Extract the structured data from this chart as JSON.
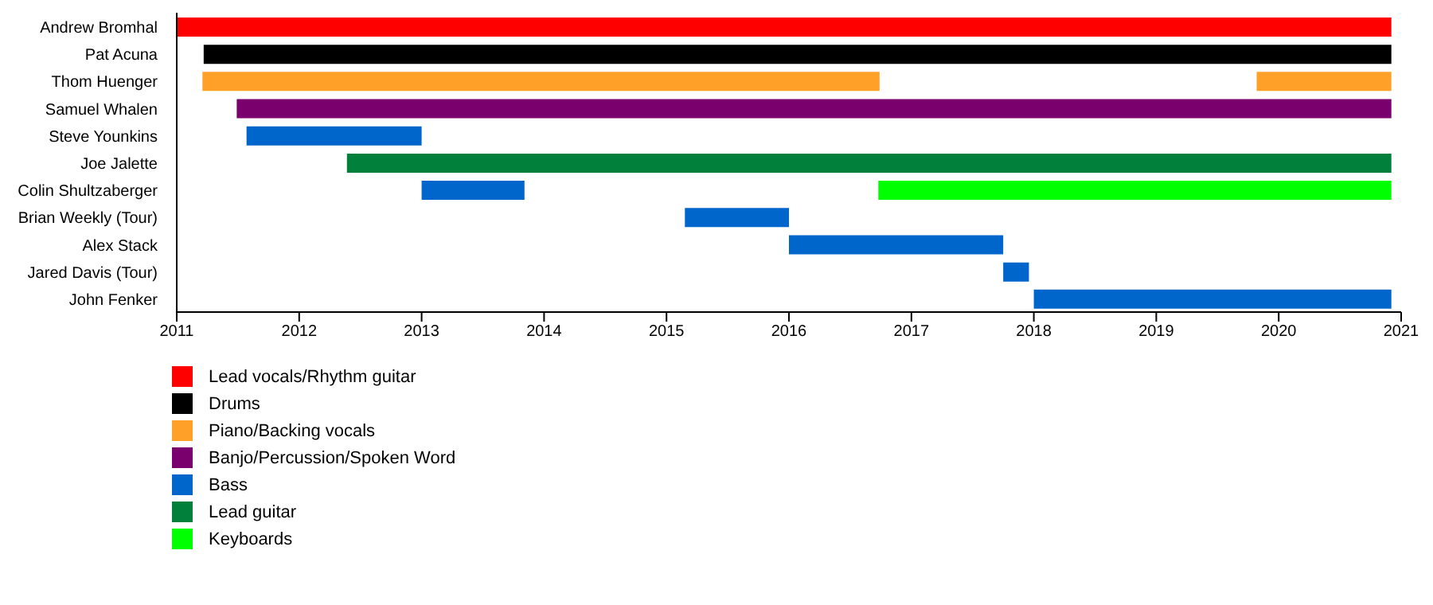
{
  "chart_data": {
    "type": "bar",
    "orientation": "horizontal",
    "categories": [
      "Andrew Bromhal",
      "Pat Acuna",
      "Thom Huenger",
      "Samuel Whalen",
      "Steve Younkins",
      "Joe Jalette",
      "Colin Shultzaberger",
      "Brian Weekly (Tour)",
      "Alex Stack",
      "Jared Davis (Tour)",
      "John Fenker"
    ],
    "series": [
      {
        "name": "Lead vocals/Rhythm guitar",
        "color": "#ff0000",
        "base": [
          2011,
          null,
          null,
          null,
          null,
          null,
          null,
          null,
          null,
          null,
          null
        ],
        "values": [
          9.92,
          null,
          null,
          null,
          null,
          null,
          null,
          null,
          null,
          null,
          null
        ]
      },
      {
        "name": "Drums",
        "color": "#000000",
        "base": [
          null,
          2011.22,
          null,
          null,
          null,
          null,
          null,
          null,
          null,
          null,
          null
        ],
        "values": [
          null,
          9.7,
          null,
          null,
          null,
          null,
          null,
          null,
          null,
          null,
          null
        ]
      },
      {
        "name": "Piano/Backing vocals",
        "color": "#ffa128",
        "base": [
          null,
          null,
          2011.21,
          null,
          null,
          null,
          null,
          null,
          null,
          null,
          null
        ],
        "values": [
          null,
          null,
          5.53,
          null,
          null,
          null,
          null,
          null,
          null,
          null,
          null
        ]
      },
      {
        "color": "#ffa128",
        "base": [
          null,
          null,
          2019.82,
          null,
          null,
          null,
          null,
          null,
          null,
          null,
          null
        ],
        "values": [
          null,
          null,
          1.1,
          null,
          null,
          null,
          null,
          null,
          null,
          null,
          null
        ]
      },
      {
        "name": "Banjo/Percussion/Spoken Word",
        "color": "#7a006e",
        "base": [
          null,
          null,
          null,
          2011.49,
          null,
          null,
          null,
          null,
          null,
          null,
          null
        ],
        "values": [
          null,
          null,
          null,
          9.43,
          null,
          null,
          null,
          null,
          null,
          null,
          null
        ]
      },
      {
        "name": "Bass",
        "color": "#0066cc",
        "base": [
          null,
          null,
          null,
          null,
          2011.57,
          null,
          2013,
          2015.15,
          2016,
          2017.75,
          2018
        ],
        "values": [
          null,
          null,
          null,
          null,
          1.43,
          null,
          0.84,
          0.85,
          1.75,
          0.21,
          2.92
        ]
      },
      {
        "name": "Lead guitar",
        "color": "#00803a",
        "base": [
          null,
          null,
          null,
          null,
          null,
          2012.39,
          null,
          null,
          null,
          null,
          null
        ],
        "values": [
          null,
          null,
          null,
          null,
          null,
          8.53,
          null,
          null,
          null,
          null,
          null
        ]
      },
      {
        "name": "Keyboards",
        "color": "#00ff00",
        "base": [
          null,
          null,
          null,
          null,
          null,
          null,
          2016.73,
          null,
          null,
          null,
          null
        ],
        "values": [
          null,
          null,
          null,
          null,
          null,
          null,
          4.19,
          null,
          null,
          null,
          null
        ]
      }
    ],
    "xlim": [
      2011,
      2021
    ],
    "xticks": [
      2011,
      2012,
      2013,
      2014,
      2015,
      2016,
      2017,
      2018,
      2019,
      2020,
      2021
    ],
    "legend": "bottom left",
    "grid": false
  }
}
